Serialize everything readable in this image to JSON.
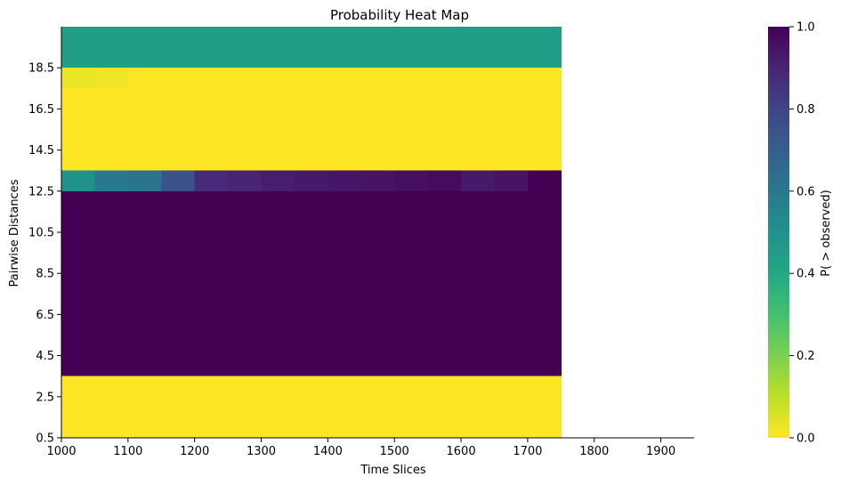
{
  "chart_data": {
    "type": "heatmap",
    "title": "Probability Heat Map",
    "xlabel": "Time Slices",
    "ylabel": "Pairwise Distances",
    "xlim": [
      1000,
      1950
    ],
    "ylim": [
      0.5,
      20.5
    ],
    "x_ticks": [
      {
        "value": 1000,
        "label": "1000"
      },
      {
        "value": 1100,
        "label": "1100"
      },
      {
        "value": 1200,
        "label": "1200"
      },
      {
        "value": 1300,
        "label": "1300"
      },
      {
        "value": 1400,
        "label": "1400"
      },
      {
        "value": 1500,
        "label": "1500"
      },
      {
        "value": 1600,
        "label": "1600"
      },
      {
        "value": 1700,
        "label": "1700"
      },
      {
        "value": 1800,
        "label": "1800"
      },
      {
        "value": 1900,
        "label": "1900"
      }
    ],
    "y_ticks": [
      {
        "value": 0.5,
        "label": "0.5"
      },
      {
        "value": 2.5,
        "label": "2.5"
      },
      {
        "value": 4.5,
        "label": "4.5"
      },
      {
        "value": 6.5,
        "label": "6.5"
      },
      {
        "value": 8.5,
        "label": "8.5"
      },
      {
        "value": 10.5,
        "label": "10.5"
      },
      {
        "value": 12.5,
        "label": "12.5"
      },
      {
        "value": 14.5,
        "label": "14.5"
      },
      {
        "value": 16.5,
        "label": "16.5"
      },
      {
        "value": 18.5,
        "label": "18.5"
      }
    ],
    "x_bins": [
      1000,
      1050,
      1100,
      1150,
      1200,
      1250,
      1300,
      1350,
      1400,
      1450,
      1500,
      1550,
      1600,
      1650,
      1700,
      1750
    ],
    "rows": [
      {
        "y_range": [
          18.5,
          20.5
        ],
        "values": [
          0.45,
          0.45,
          0.45,
          0.45,
          0.45,
          0.45,
          0.45,
          0.45,
          0.45,
          0.45,
          0.45,
          0.45,
          0.45,
          0.45,
          0.45
        ]
      },
      {
        "y_range": [
          17.5,
          18.5
        ],
        "values": [
          0.03,
          0.02,
          0.0,
          0.0,
          0.0,
          0.0,
          0.0,
          0.0,
          0.0,
          0.0,
          0.0,
          0.0,
          0.0,
          0.0,
          0.0
        ]
      },
      {
        "y_range": [
          13.5,
          17.5
        ],
        "values": [
          0.0,
          0.0,
          0.0,
          0.0,
          0.0,
          0.0,
          0.0,
          0.0,
          0.0,
          0.0,
          0.0,
          0.0,
          0.0,
          0.0,
          0.0
        ]
      },
      {
        "y_range": [
          12.5,
          13.5
        ],
        "values": [
          0.5,
          0.6,
          0.62,
          0.75,
          0.88,
          0.9,
          0.92,
          0.93,
          0.94,
          0.95,
          0.96,
          0.97,
          0.93,
          0.95,
          1.0
        ]
      },
      {
        "y_range": [
          3.5,
          12.5
        ],
        "values": [
          1.0,
          1.0,
          1.0,
          1.0,
          1.0,
          1.0,
          1.0,
          1.0,
          1.0,
          1.0,
          1.0,
          1.0,
          1.0,
          1.0,
          1.0
        ]
      },
      {
        "y_range": [
          0.5,
          3.5
        ],
        "values": [
          0.0,
          0.0,
          0.0,
          0.0,
          0.0,
          0.0,
          0.0,
          0.0,
          0.0,
          0.0,
          0.0,
          0.0,
          0.0,
          0.0,
          0.0
        ]
      }
    ],
    "colorbar": {
      "label": "P( > observed)",
      "colormap": "viridis_r",
      "range": [
        0.0,
        1.0
      ],
      "ticks": [
        {
          "value": 0.0,
          "label": "0.0"
        },
        {
          "value": 0.2,
          "label": "0.2"
        },
        {
          "value": 0.4,
          "label": "0.4"
        },
        {
          "value": 0.6,
          "label": "0.6"
        },
        {
          "value": 0.8,
          "label": "0.8"
        },
        {
          "value": 1.0,
          "label": "1.0"
        }
      ]
    }
  }
}
